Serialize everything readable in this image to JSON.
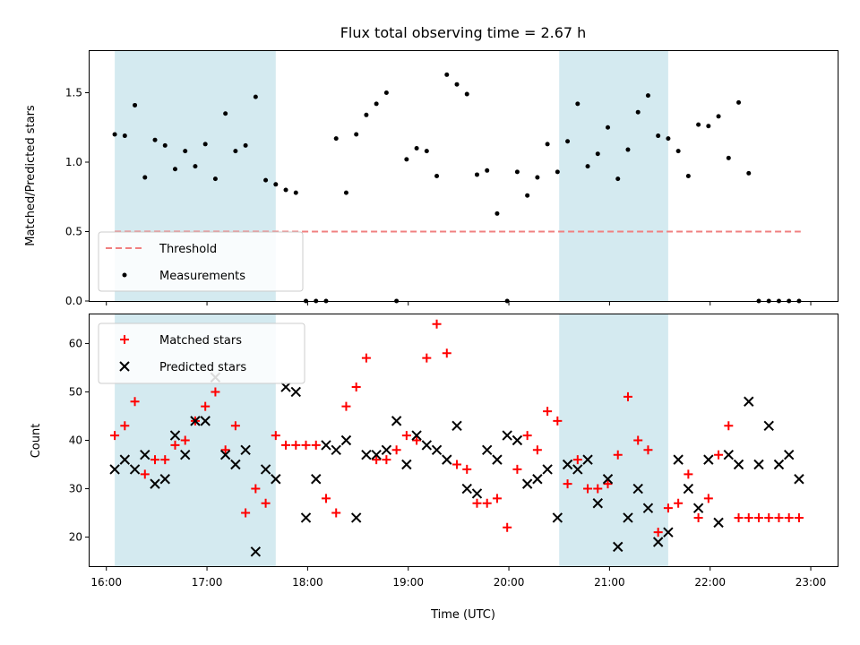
{
  "chart_data": [
    {
      "type": "scatter",
      "title": "Flux total observing time = 2.67 h",
      "xlabel": "",
      "ylabel": "Matched/Predicted stars",
      "ylim": [
        0,
        1.8
      ],
      "xlim": [
        "15:50",
        "23:16"
      ],
      "yticks": [
        "0.0",
        "0.5",
        "1.0",
        "1.5"
      ],
      "shaded_intervals": [
        [
          "16:05",
          "17:41"
        ],
        [
          "20:30",
          "21:35"
        ]
      ],
      "shade_color": "#d4eaf0",
      "legend_position": "lower-left",
      "threshold": {
        "name": "Threshold",
        "value": 0.5,
        "x_range": [
          "16:05",
          "22:54"
        ],
        "color": "#f08080"
      },
      "series": [
        {
          "name": "Measurements",
          "color": "#000000",
          "x": [
            "16:05",
            "16:11",
            "16:17",
            "16:23",
            "16:29",
            "16:35",
            "16:41",
            "16:47",
            "16:53",
            "16:59",
            "17:05",
            "17:11",
            "17:17",
            "17:23",
            "17:29",
            "17:35",
            "17:41",
            "17:47",
            "17:53",
            "17:59",
            "18:05",
            "18:11",
            "18:17",
            "18:23",
            "18:29",
            "18:35",
            "18:41",
            "18:47",
            "18:53",
            "18:59",
            "19:05",
            "19:11",
            "19:17",
            "19:23",
            "19:29",
            "19:35",
            "19:41",
            "19:47",
            "19:53",
            "19:59",
            "20:05",
            "20:11",
            "20:17",
            "20:23",
            "20:29",
            "20:35",
            "20:41",
            "20:47",
            "20:53",
            "20:59",
            "21:05",
            "21:11",
            "21:17",
            "21:23",
            "21:29",
            "21:35",
            "21:41",
            "21:47",
            "21:53",
            "21:59",
            "22:05",
            "22:11",
            "22:17",
            "22:23",
            "22:29",
            "22:35",
            "22:41",
            "22:47",
            "22:53"
          ],
          "y": [
            1.2,
            1.19,
            1.41,
            0.89,
            1.16,
            1.12,
            0.95,
            1.08,
            0.97,
            1.13,
            0.88,
            1.35,
            1.08,
            1.12,
            1.47,
            0.87,
            0.84,
            0.8,
            0.78,
            0.0,
            0.0,
            0.0,
            1.17,
            0.78,
            1.2,
            1.34,
            1.42,
            1.5,
            0.0,
            1.02,
            1.1,
            1.08,
            0.9,
            1.63,
            1.56,
            1.49,
            0.91,
            0.94,
            0.63,
            0.0,
            0.93,
            0.76,
            0.89,
            1.13,
            0.93,
            1.15,
            1.42,
            0.97,
            1.06,
            1.25,
            0.88,
            1.09,
            1.36,
            1.48,
            1.19,
            1.17,
            1.08,
            0.9,
            1.27,
            1.26,
            1.33,
            1.03,
            1.43,
            0.92,
            0.0,
            0.0,
            0.0,
            0.0,
            0.0
          ]
        }
      ]
    },
    {
      "type": "scatter",
      "title": "",
      "xlabel": "Time (UTC)",
      "ylabel": "Count",
      "ylim": [
        14,
        66
      ],
      "xlim": [
        "15:50",
        "23:16"
      ],
      "yticks": [
        "20",
        "30",
        "40",
        "50",
        "60"
      ],
      "xticks": [
        "16:00",
        "17:00",
        "18:00",
        "19:00",
        "20:00",
        "21:00",
        "22:00",
        "23:00"
      ],
      "shaded_intervals": [
        [
          "16:05",
          "17:41"
        ],
        [
          "20:30",
          "21:35"
        ]
      ],
      "legend_position": "upper-left",
      "series": [
        {
          "name": "Matched stars",
          "marker": "plus",
          "color": "#ff0000",
          "x": [
            "16:05",
            "16:11",
            "16:17",
            "16:23",
            "16:29",
            "16:35",
            "16:41",
            "16:47",
            "16:53",
            "16:59",
            "17:05",
            "17:11",
            "17:17",
            "17:23",
            "17:29",
            "17:35",
            "17:41",
            "17:47",
            "17:53",
            "17:59",
            "18:05",
            "18:11",
            "18:17",
            "18:23",
            "18:29",
            "18:35",
            "18:41",
            "18:47",
            "18:53",
            "18:59",
            "19:05",
            "19:11",
            "19:17",
            "19:23",
            "19:29",
            "19:35",
            "19:41",
            "19:47",
            "19:53",
            "19:59",
            "20:05",
            "20:11",
            "20:17",
            "20:23",
            "20:29",
            "20:35",
            "20:41",
            "20:47",
            "20:53",
            "20:59",
            "21:05",
            "21:11",
            "21:17",
            "21:23",
            "21:29",
            "21:35",
            "21:41",
            "21:47",
            "21:53",
            "21:59",
            "22:05",
            "22:11",
            "22:17",
            "22:23",
            "22:29",
            "22:35",
            "22:41",
            "22:47",
            "22:53"
          ],
          "y": [
            41,
            43,
            48,
            33,
            36,
            36,
            39,
            40,
            44,
            47,
            50,
            38,
            43,
            25,
            30,
            27,
            41,
            39,
            39,
            39,
            39,
            28,
            25,
            47,
            51,
            57,
            36,
            36,
            38,
            41,
            40,
            57,
            64,
            58,
            35,
            34,
            27,
            27,
            28,
            22,
            34,
            41,
            38,
            46,
            44,
            31,
            36,
            30,
            30,
            31,
            37,
            49,
            40,
            38,
            21,
            26,
            27,
            33,
            24,
            28,
            37,
            43,
            24,
            24,
            24,
            24,
            24,
            24,
            24
          ]
        },
        {
          "name": "Predicted stars",
          "marker": "x",
          "color": "#000000",
          "x": [
            "16:05",
            "16:11",
            "16:17",
            "16:23",
            "16:29",
            "16:35",
            "16:41",
            "16:47",
            "16:53",
            "16:59",
            "17:05",
            "17:11",
            "17:17",
            "17:23",
            "17:29",
            "17:35",
            "17:41",
            "17:47",
            "17:53",
            "17:59",
            "18:05",
            "18:11",
            "18:17",
            "18:23",
            "18:29",
            "18:35",
            "18:41",
            "18:47",
            "18:53",
            "18:59",
            "19:05",
            "19:11",
            "19:17",
            "19:23",
            "19:29",
            "19:35",
            "19:41",
            "19:47",
            "19:53",
            "19:59",
            "20:05",
            "20:11",
            "20:17",
            "20:23",
            "20:29",
            "20:35",
            "20:41",
            "20:47",
            "20:53",
            "20:59",
            "21:05",
            "21:11",
            "21:17",
            "21:23",
            "21:29",
            "21:35",
            "21:41",
            "21:47",
            "21:53",
            "21:59",
            "22:05",
            "22:11",
            "22:17",
            "22:23",
            "22:29",
            "22:35",
            "22:41",
            "22:47",
            "22:53"
          ],
          "y": [
            34,
            36,
            34,
            37,
            31,
            32,
            41,
            37,
            44,
            44,
            53,
            37,
            35,
            38,
            17,
            34,
            32,
            51,
            50,
            24,
            32,
            39,
            38,
            40,
            24,
            37,
            37,
            38,
            44,
            35,
            41,
            39,
            38,
            36,
            43,
            30,
            29,
            38,
            36,
            41,
            40,
            31,
            32,
            34,
            24,
            35,
            34,
            36,
            27,
            32,
            18,
            24,
            30,
            26,
            19,
            21,
            36,
            30,
            26,
            36,
            23,
            37,
            35,
            48,
            35,
            43,
            35,
            37,
            32
          ]
        }
      ]
    }
  ]
}
